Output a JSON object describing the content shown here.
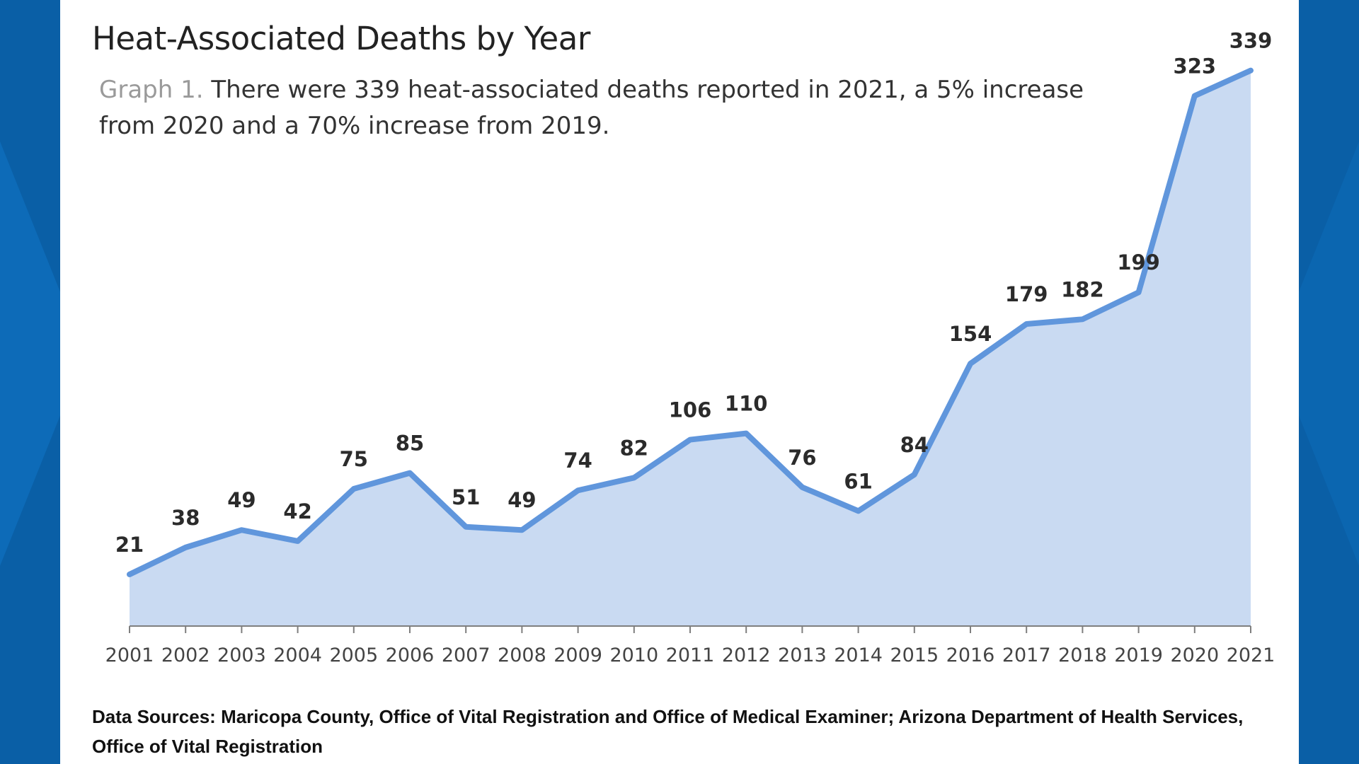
{
  "colors": {
    "background": "#0a5fa6",
    "panel": "#ffffff",
    "line": "#6096dc",
    "area": "#c9daf2",
    "axis": "#7f7f7f"
  },
  "chart_data": {
    "type": "area",
    "title": "Heat-Associated Deaths by Year",
    "subtitle_prefix": "Graph 1.",
    "subtitle": "There were 339 heat-associated deaths reported in 2021, a 5% increase from 2020 and a 70% increase from 2019.",
    "xlabel": "",
    "ylabel": "",
    "ylim": [
      0,
      360
    ],
    "grid": false,
    "categories": [
      "2001",
      "2002",
      "2003",
      "2004",
      "2005",
      "2006",
      "2007",
      "2008",
      "2009",
      "2010",
      "2011",
      "2012",
      "2013",
      "2014",
      "2015",
      "2016",
      "2017",
      "2018",
      "2019",
      "2020",
      "2021"
    ],
    "series": [
      {
        "name": "Heat-associated deaths",
        "values": [
          21,
          38,
          49,
          42,
          75,
          85,
          51,
          49,
          74,
          82,
          106,
          110,
          76,
          61,
          84,
          154,
          179,
          182,
          199,
          323,
          339
        ]
      }
    ]
  },
  "footer": {
    "sources": "Data Sources: Maricopa County, Office of Vital Registration and Office of Medical Examiner; Arizona Department of Health Services, Office of Vital Registration"
  }
}
